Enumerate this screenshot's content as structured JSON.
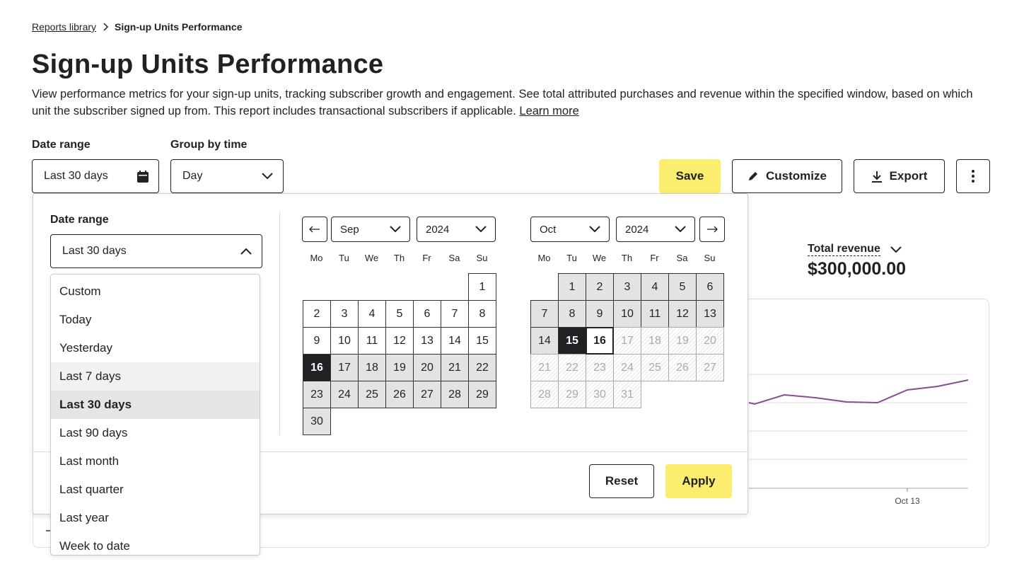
{
  "breadcrumb": {
    "parent": "Reports library",
    "current": "Sign-up Units Performance"
  },
  "header": {
    "title": "Sign-up Units Performance",
    "description": "View performance metrics for your sign-up units, tracking subscriber growth and engagement. See total attributed purchases and revenue within the specified window, based on which unit the subscriber signed up from. This report includes transactional subscribers if applicable.",
    "learn_more": "Learn more"
  },
  "filters": {
    "date_range": {
      "label": "Date range",
      "value": "Last 30 days"
    },
    "group_by": {
      "label": "Group by time",
      "value": "Day"
    }
  },
  "actions": {
    "save": "Save",
    "customize": "Customize",
    "export": "Export"
  },
  "metric": {
    "label": "Total revenue",
    "value": "$300,000.00"
  },
  "chart": {
    "x_tick": "Oct 13"
  },
  "popover": {
    "label": "Date range",
    "value": "Last 30 days",
    "options": [
      "Custom",
      "Today",
      "Yesterday",
      "Last 7 days",
      "Last 30 days",
      "Last 90 days",
      "Last month",
      "Last quarter",
      "Last year",
      "Week to date"
    ],
    "hovered": "Last 7 days",
    "selected": "Last 30 days",
    "calendars": [
      {
        "month": "Sep",
        "year": "2024",
        "weekdays": [
          "Mo",
          "Tu",
          "We",
          "Th",
          "Fr",
          "Sa",
          "Su"
        ],
        "days": [
          1,
          2,
          3,
          4,
          5,
          6,
          7,
          8,
          9,
          10,
          11,
          12,
          13,
          14,
          15,
          16,
          17,
          18,
          19,
          20,
          21,
          22,
          23,
          24,
          25,
          26,
          27,
          28,
          29,
          30
        ],
        "day_states": [
          "default",
          "default",
          "default",
          "default",
          "default",
          "default",
          "default",
          "default",
          "default",
          "default",
          "default",
          "default",
          "default",
          "default",
          "default",
          "start",
          "range",
          "range",
          "range",
          "range",
          "range",
          "range",
          "range",
          "range",
          "range",
          "range",
          "range",
          "range",
          "range",
          "range"
        ]
      },
      {
        "month": "Oct",
        "year": "2024",
        "weekdays": [
          "Mo",
          "Tu",
          "We",
          "Th",
          "Fr",
          "Sa",
          "Su"
        ],
        "days": [
          1,
          2,
          3,
          4,
          5,
          6,
          7,
          8,
          9,
          10,
          11,
          12,
          13,
          14,
          15,
          16,
          17,
          18,
          19,
          20,
          21,
          22,
          23,
          24,
          25,
          26,
          27,
          28,
          29,
          30,
          31
        ],
        "day_states": [
          "range",
          "range",
          "range",
          "range",
          "range",
          "range",
          "range",
          "range",
          "range",
          "range",
          "range",
          "range",
          "range",
          "range",
          "end",
          "today",
          "disabled",
          "disabled",
          "disabled",
          "disabled",
          "disabled",
          "disabled",
          "disabled",
          "disabled",
          "disabled",
          "disabled",
          "disabled",
          "disabled",
          "disabled",
          "disabled",
          "disabled"
        ]
      }
    ],
    "reset": "Reset",
    "apply": "Apply"
  }
}
